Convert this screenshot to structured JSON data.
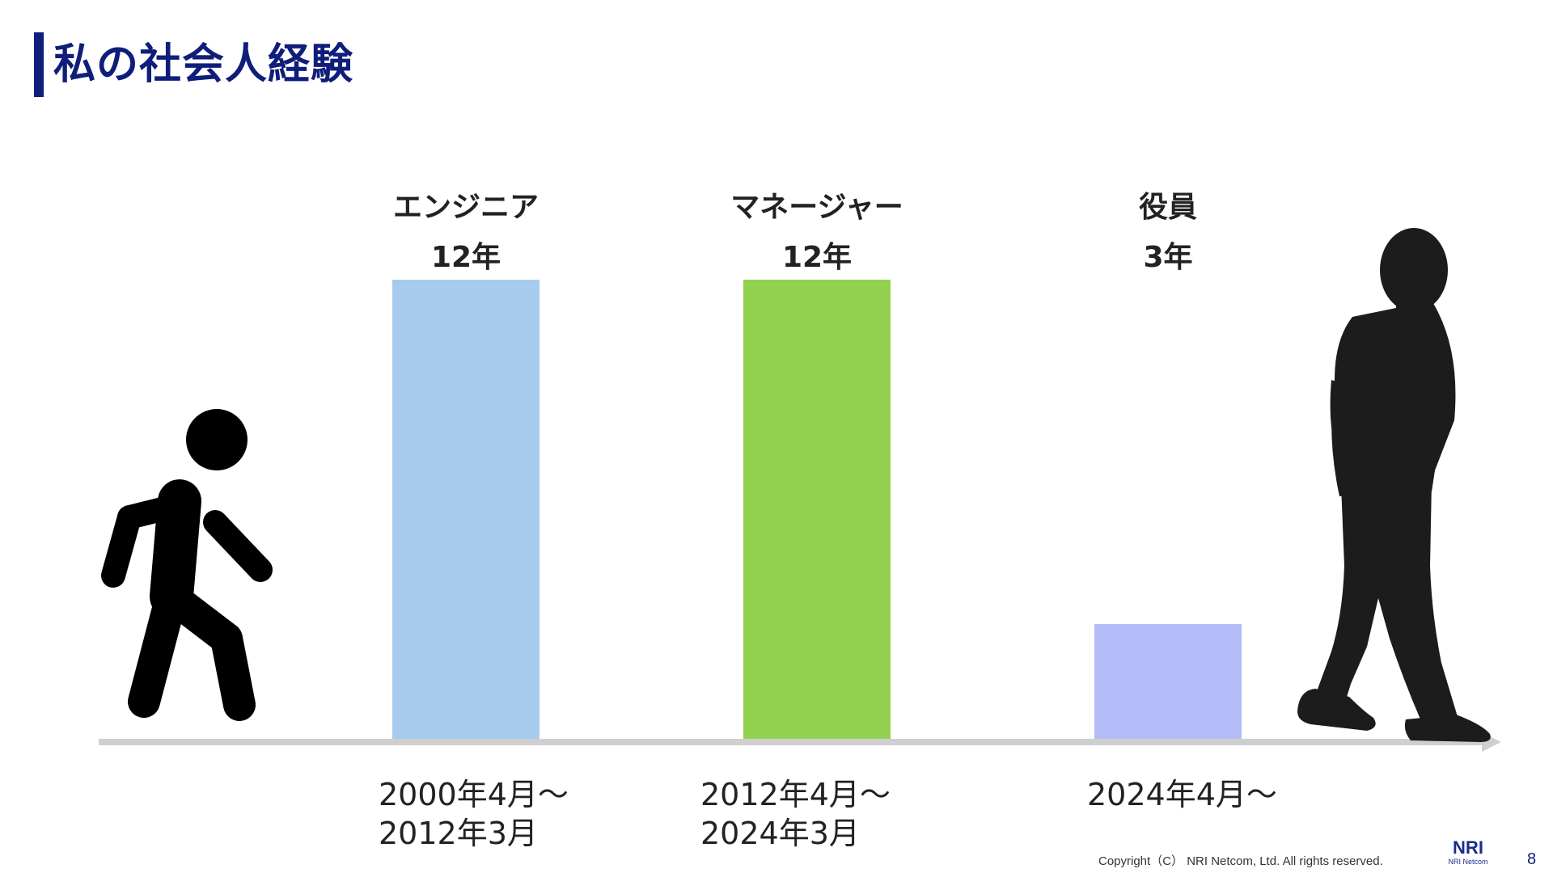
{
  "slide": {
    "title": "私の社会人経験",
    "copyright": "Copyright（C） NRI Netcom, Ltd. All rights reserved.",
    "logo_mark": "NRI",
    "logo_sub": "NRI Netcom",
    "page_number": "8"
  },
  "chart_data": {
    "type": "bar",
    "title": "",
    "categories": [
      "エンジニア",
      "マネージャー",
      "役員"
    ],
    "values": [
      12,
      12,
      3
    ],
    "value_labels": [
      "12年",
      "12年",
      "3年"
    ],
    "periods": [
      [
        "2000年4月～",
        "2012年3月"
      ],
      [
        "2012年4月～",
        "2024年3月"
      ],
      [
        "2024年4月～"
      ]
    ],
    "bar_colors": [
      "#a6cbec",
      "#92d050",
      "#b4bcfa"
    ],
    "axis_color": "#cfcfcf",
    "ylim": [
      0,
      12
    ],
    "grid": false,
    "legend": "none",
    "decorations": [
      "walking-person-icon",
      "standing-man-silhouette"
    ]
  }
}
